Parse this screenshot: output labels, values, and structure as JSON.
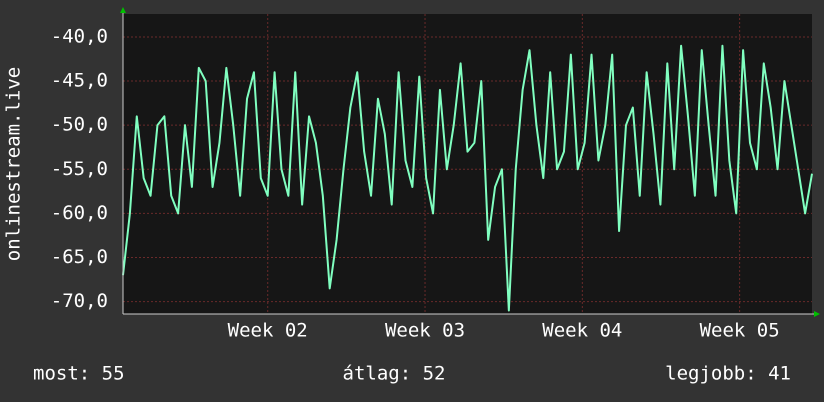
{
  "chart_data": {
    "type": "line",
    "ylabel": "onlinestream.live",
    "x": [
      1.08,
      1.1238,
      1.1676,
      1.2114,
      1.2552,
      1.299,
      1.3428,
      1.3866,
      1.4304,
      1.4742,
      1.518,
      1.5618,
      1.6056,
      1.6494,
      1.6932,
      1.737,
      1.7808,
      1.8246,
      1.8684,
      1.9122,
      1.956,
      1.9998,
      2.0436,
      2.0874,
      2.1312,
      2.175,
      2.2188,
      2.2626,
      2.3064,
      2.3502,
      2.394,
      2.4378,
      2.4816,
      2.5254,
      2.5692,
      2.613,
      2.6568,
      2.7006,
      2.7444,
      2.7882,
      2.832,
      2.8758,
      2.9196,
      2.9634,
      3.0072,
      3.051,
      3.0948,
      3.1386,
      3.1824,
      3.2262,
      3.27,
      3.3138,
      3.3576,
      3.4014,
      3.4452,
      3.489,
      3.5328,
      3.5766,
      3.6204,
      3.6642,
      3.708,
      3.7518,
      3.7956,
      3.8394,
      3.8832,
      3.927,
      3.9708,
      4.0146,
      4.0584,
      4.1022,
      4.146,
      4.1898,
      4.2336,
      4.2774,
      4.3212,
      4.365,
      4.4088,
      4.4526,
      4.4964,
      4.5402,
      4.584,
      4.6278,
      4.6716,
      4.7154,
      4.7592,
      4.803,
      4.8468,
      4.8906,
      4.9344,
      4.9782,
      5.022,
      5.0658,
      5.1096,
      5.1534,
      5.1972,
      5.241,
      5.2848,
      5.3286,
      5.3724,
      5.4162,
      5.46
    ],
    "values": [
      -67,
      -60,
      -49,
      -56,
      -58,
      -50,
      -49,
      -58,
      -60,
      -50,
      -57,
      -43.5,
      -45,
      -57,
      -52,
      -43.5,
      -50,
      -58,
      -47,
      -44,
      -56,
      -58,
      -44,
      -55,
      -58,
      -44,
      -59,
      -49,
      -52,
      -58,
      -68.5,
      -63,
      -55,
      -48,
      -44,
      -53,
      -58,
      -47,
      -51,
      -59,
      -44,
      -54,
      -57,
      -44.5,
      -56,
      -60,
      -46,
      -55,
      -50,
      -43,
      -53,
      -52,
      -45,
      -63,
      -57,
      -55,
      -71,
      -55,
      -46,
      -41.5,
      -50,
      -56,
      -44,
      -55,
      -53,
      -42,
      -55,
      -52,
      -42,
      -54,
      -50,
      -42,
      -62,
      -50,
      -48,
      -58,
      -44,
      -51,
      -59,
      -43,
      -55,
      -41,
      -49,
      -58,
      -41.5,
      -50,
      -58,
      -41,
      -54,
      -60,
      -41.5,
      -52,
      -55,
      -43,
      -48,
      -55,
      -45,
      -50,
      -55,
      -60,
      -55.5
    ],
    "color": "#80ffc0",
    "xlim": [
      1.08,
      5.46
    ],
    "xticks": [
      {
        "value": 2,
        "label": "Week 02"
      },
      {
        "value": 3,
        "label": "Week 03"
      },
      {
        "value": 4,
        "label": "Week 04"
      },
      {
        "value": 5,
        "label": "Week 05"
      }
    ],
    "ylim": [
      -71.4,
      -37.4
    ],
    "yticks": [
      {
        "value": -40,
        "label": "-40,0"
      },
      {
        "value": -45,
        "label": "-45,0"
      },
      {
        "value": -50,
        "label": "-50,0"
      },
      {
        "value": -55,
        "label": "-55,0"
      },
      {
        "value": -60,
        "label": "-60,0"
      },
      {
        "value": -65,
        "label": "-65,0"
      },
      {
        "value": -70,
        "label": "-70,0"
      }
    ],
    "grid": true,
    "footer": [
      "most: 55",
      "átlag: 52",
      "legjobb: 41"
    ]
  }
}
